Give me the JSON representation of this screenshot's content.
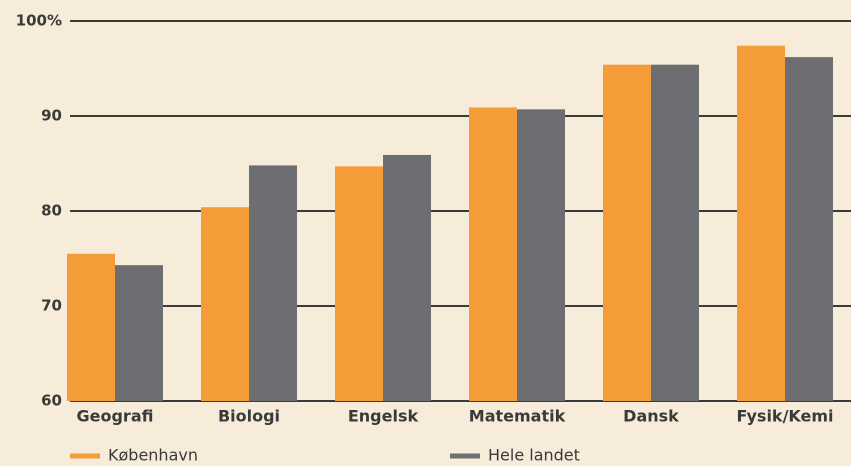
{
  "chart_data": {
    "type": "bar",
    "categories": [
      "Geografi",
      "Biologi",
      "Engelsk",
      "Matematik",
      "Dansk",
      "Fysik/Kemi"
    ],
    "series": [
      {
        "name": "København",
        "color": "#f39c38",
        "values": [
          75.5,
          80.4,
          84.7,
          90.9,
          95.4,
          97.4
        ]
      },
      {
        "name": "Hele landet",
        "color": "#6d6e71",
        "values": [
          74.3,
          84.8,
          85.9,
          90.7,
          95.4,
          96.2
        ]
      }
    ],
    "ylim": [
      60,
      100
    ],
    "yticks": [
      60,
      70,
      80,
      90,
      {
        "value": 100,
        "label": "100%"
      }
    ],
    "grid": true
  }
}
